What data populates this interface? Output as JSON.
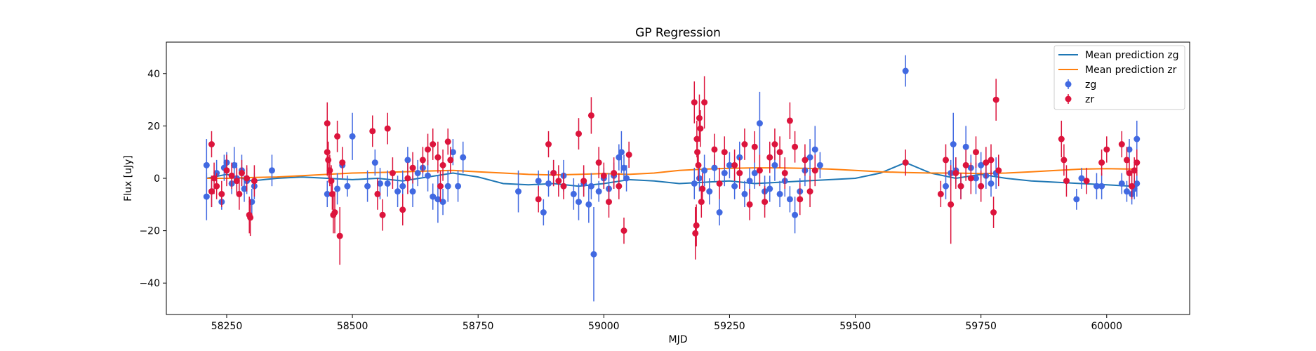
{
  "chart_data": {
    "type": "scatter",
    "title": "GP Regression",
    "xlabel": "MJD",
    "ylabel": "Flux [uJy]",
    "xlim": [
      58130,
      60165
    ],
    "ylim": [
      -52,
      52
    ],
    "xticks": [
      58250,
      58500,
      58750,
      59000,
      59250,
      59500,
      59750,
      60000
    ],
    "yticks": [
      -40,
      -20,
      0,
      20,
      40
    ],
    "grid": false,
    "legend_position": "top-right",
    "colors": {
      "zg_points": "#4169e1",
      "zr_points": "#dc143c",
      "zg_mean": "#1f77b4",
      "zr_mean": "#ff7f0e"
    },
    "lines": [
      {
        "name": "Mean prediction zg",
        "x": [
          58210,
          58250,
          58300,
          58350,
          58400,
          58450,
          58500,
          58550,
          58600,
          58650,
          58700,
          58750,
          58800,
          58850,
          58900,
          58950,
          59000,
          59050,
          59100,
          59150,
          59200,
          59250,
          59300,
          59350,
          59400,
          59450,
          59500,
          59550,
          59600,
          59650,
          59700,
          59750,
          59800,
          59850,
          59900,
          59950,
          60000,
          60050,
          60060
        ],
        "y": [
          0,
          1.5,
          -1,
          0,
          0.5,
          0,
          -0.5,
          0,
          -1,
          0.5,
          2,
          0.5,
          -2,
          -2.5,
          -2,
          -3,
          -2,
          -0.5,
          -1,
          -2,
          -1.5,
          -1,
          -2,
          -1.5,
          -1,
          -0.5,
          0,
          2,
          6,
          2,
          0,
          1.5,
          0,
          -1,
          -1.5,
          -2,
          -2.5,
          -3,
          -3
        ]
      },
      {
        "name": "Mean prediction zr",
        "x": [
          58210,
          58250,
          58300,
          58350,
          58400,
          58450,
          58500,
          58550,
          58600,
          58650,
          58700,
          58750,
          58800,
          58850,
          58900,
          58950,
          59000,
          59050,
          59100,
          59150,
          59200,
          59250,
          59300,
          59350,
          59400,
          59450,
          59500,
          59550,
          59600,
          59650,
          59700,
          59750,
          59800,
          59850,
          59900,
          59950,
          60000,
          60050,
          60060
        ],
        "y": [
          0,
          0,
          0.3,
          0.5,
          1,
          1.5,
          2,
          2.2,
          2.5,
          2.8,
          3,
          2.5,
          2,
          1.5,
          1.3,
          1.5,
          1.8,
          1.5,
          2,
          3,
          3.5,
          3.8,
          4,
          4,
          3.8,
          3.5,
          3,
          2.5,
          2.2,
          2,
          2,
          1.8,
          2,
          2.5,
          3,
          3.5,
          3.7,
          3.5,
          3.5
        ]
      }
    ],
    "series": [
      {
        "name": "zg",
        "points": [
          [
            58210,
            5,
            10
          ],
          [
            58210,
            -7,
            9
          ],
          [
            58220,
            -5,
            6
          ],
          [
            58230,
            2,
            5
          ],
          [
            58240,
            -9,
            3
          ],
          [
            58245,
            4,
            5
          ],
          [
            58250,
            6,
            4
          ],
          [
            58260,
            -2,
            4
          ],
          [
            58265,
            5,
            7
          ],
          [
            58270,
            0,
            6
          ],
          [
            58280,
            3,
            6
          ],
          [
            58285,
            -4,
            5
          ],
          [
            58290,
            -1,
            5
          ],
          [
            58300,
            -9,
            5
          ],
          [
            58305,
            -3,
            5
          ],
          [
            58340,
            3,
            6
          ],
          [
            58450,
            -6,
            5
          ],
          [
            58470,
            -4,
            6
          ],
          [
            58480,
            5,
            4
          ],
          [
            58490,
            -3,
            4
          ],
          [
            58500,
            16,
            9
          ],
          [
            58530,
            -3,
            6
          ],
          [
            58545,
            6,
            5
          ],
          [
            58555,
            -2,
            6
          ],
          [
            58570,
            -2,
            5
          ],
          [
            58590,
            -5,
            6
          ],
          [
            58600,
            -3,
            6
          ],
          [
            58610,
            7,
            5
          ],
          [
            58620,
            -5,
            6
          ],
          [
            58630,
            2,
            5
          ],
          [
            58640,
            4,
            4
          ],
          [
            58650,
            1,
            6
          ],
          [
            58660,
            -7,
            5
          ],
          [
            58670,
            -8,
            9
          ],
          [
            58680,
            -9,
            5
          ],
          [
            58690,
            -3,
            6
          ],
          [
            58700,
            10,
            5
          ],
          [
            58710,
            -3,
            6
          ],
          [
            58720,
            8,
            6
          ],
          [
            58830,
            -5,
            8
          ],
          [
            58870,
            -1,
            4
          ],
          [
            58880,
            -13,
            5
          ],
          [
            58890,
            -2,
            5
          ],
          [
            58900,
            2,
            5
          ],
          [
            58920,
            1,
            6
          ],
          [
            58940,
            -6,
            6
          ],
          [
            58950,
            -9,
            7
          ],
          [
            58960,
            -2,
            5
          ],
          [
            58970,
            -10,
            7
          ],
          [
            58975,
            -3,
            5
          ],
          [
            58980,
            -29,
            18
          ],
          [
            58990,
            -5,
            4
          ],
          [
            59000,
            0,
            4
          ],
          [
            59010,
            -4,
            6
          ],
          [
            59020,
            1,
            5
          ],
          [
            59030,
            8,
            5
          ],
          [
            59035,
            10,
            8
          ],
          [
            59040,
            4,
            5
          ],
          [
            59045,
            0,
            5
          ],
          [
            59180,
            -2,
            6
          ],
          [
            59190,
            0,
            5
          ],
          [
            59200,
            3,
            6
          ],
          [
            59210,
            -5,
            5
          ],
          [
            59220,
            4,
            5
          ],
          [
            59230,
            -13,
            5
          ],
          [
            59240,
            2,
            5
          ],
          [
            59250,
            5,
            5
          ],
          [
            59260,
            -3,
            5
          ],
          [
            59270,
            8,
            6
          ],
          [
            59280,
            -6,
            5
          ],
          [
            59290,
            -1,
            5
          ],
          [
            59300,
            2,
            6
          ],
          [
            59310,
            21,
            12
          ],
          [
            59320,
            -5,
            6
          ],
          [
            59330,
            -4,
            5
          ],
          [
            59340,
            5,
            6
          ],
          [
            59350,
            -6,
            5
          ],
          [
            59360,
            -1,
            6
          ],
          [
            59370,
            -8,
            5
          ],
          [
            59380,
            -14,
            7
          ],
          [
            59390,
            -5,
            5
          ],
          [
            59400,
            3,
            6
          ],
          [
            59410,
            8,
            7
          ],
          [
            59420,
            11,
            9
          ],
          [
            59430,
            5,
            5
          ],
          [
            59600,
            41,
            6
          ],
          [
            59680,
            -3,
            5
          ],
          [
            59690,
            2,
            5
          ],
          [
            59695,
            13,
            12
          ],
          [
            59700,
            3,
            5
          ],
          [
            59710,
            -3,
            5
          ],
          [
            59720,
            12,
            8
          ],
          [
            59730,
            4,
            5
          ],
          [
            59740,
            0,
            6
          ],
          [
            59750,
            5,
            5
          ],
          [
            59760,
            1,
            5
          ],
          [
            59770,
            -2,
            5
          ],
          [
            59780,
            2,
            6
          ],
          [
            59940,
            -8,
            4
          ],
          [
            59950,
            0,
            4
          ],
          [
            59980,
            -3,
            5
          ],
          [
            59990,
            -3,
            5
          ],
          [
            60030,
            -2,
            4
          ],
          [
            60040,
            -5,
            4
          ],
          [
            60045,
            11,
            4
          ],
          [
            60050,
            -6,
            4
          ],
          [
            60055,
            -4,
            4
          ],
          [
            60060,
            15,
            7
          ],
          [
            60060,
            -2,
            5
          ]
        ]
      },
      {
        "name": "zr",
        "points": [
          [
            58220,
            13,
            5
          ],
          [
            58220,
            -5,
            6
          ],
          [
            58225,
            0,
            6
          ],
          [
            58230,
            -3,
            5
          ],
          [
            58240,
            -6,
            5
          ],
          [
            58250,
            3,
            6
          ],
          [
            58260,
            1,
            5
          ],
          [
            58270,
            -1,
            5
          ],
          [
            58275,
            -6,
            6
          ],
          [
            58280,
            2,
            5
          ],
          [
            58290,
            0,
            5
          ],
          [
            58295,
            -14,
            7
          ],
          [
            58297,
            -15,
            7
          ],
          [
            58305,
            -1,
            6
          ],
          [
            58450,
            21,
            8
          ],
          [
            58450,
            10,
            9
          ],
          [
            58452,
            7,
            7
          ],
          [
            58455,
            3,
            6
          ],
          [
            58458,
            -1,
            6
          ],
          [
            58460,
            -6,
            6
          ],
          [
            58462,
            -14,
            7
          ],
          [
            58465,
            -13,
            8
          ],
          [
            58470,
            16,
            6
          ],
          [
            58475,
            -22,
            11
          ],
          [
            58480,
            6,
            6
          ],
          [
            58540,
            18,
            6
          ],
          [
            58550,
            -6,
            6
          ],
          [
            58560,
            -14,
            6
          ],
          [
            58570,
            19,
            6
          ],
          [
            58580,
            2,
            6
          ],
          [
            58600,
            -12,
            6
          ],
          [
            58610,
            0,
            6
          ],
          [
            58620,
            4,
            6
          ],
          [
            58640,
            7,
            5
          ],
          [
            58650,
            11,
            6
          ],
          [
            58660,
            13,
            6
          ],
          [
            58670,
            8,
            6
          ],
          [
            58675,
            -3,
            6
          ],
          [
            58680,
            5,
            6
          ],
          [
            58690,
            14,
            5
          ],
          [
            58695,
            7,
            5
          ],
          [
            58870,
            -8,
            5
          ],
          [
            58890,
            13,
            5
          ],
          [
            58900,
            2,
            5
          ],
          [
            58910,
            -1,
            6
          ],
          [
            58920,
            -3,
            5
          ],
          [
            58950,
            17,
            6
          ],
          [
            58960,
            -1,
            6
          ],
          [
            58975,
            24,
            7
          ],
          [
            58990,
            6,
            6
          ],
          [
            59000,
            1,
            5
          ],
          [
            59010,
            -9,
            6
          ],
          [
            59020,
            2,
            6
          ],
          [
            59030,
            -3,
            5
          ],
          [
            59040,
            -20,
            5
          ],
          [
            59050,
            9,
            5
          ],
          [
            59180,
            29,
            8
          ],
          [
            59182,
            -21,
            10
          ],
          [
            59184,
            -18,
            8
          ],
          [
            59185,
            15,
            7
          ],
          [
            59186,
            10,
            6
          ],
          [
            59188,
            5,
            6
          ],
          [
            59190,
            23,
            9
          ],
          [
            59192,
            19,
            7
          ],
          [
            59194,
            -9,
            6
          ],
          [
            59196,
            -4,
            6
          ],
          [
            59200,
            29,
            10
          ],
          [
            59220,
            11,
            6
          ],
          [
            59230,
            -2,
            6
          ],
          [
            59240,
            10,
            6
          ],
          [
            59260,
            5,
            6
          ],
          [
            59270,
            2,
            6
          ],
          [
            59280,
            13,
            6
          ],
          [
            59290,
            -10,
            6
          ],
          [
            59300,
            12,
            6
          ],
          [
            59310,
            3,
            6
          ],
          [
            59320,
            -9,
            6
          ],
          [
            59330,
            8,
            6
          ],
          [
            59340,
            13,
            6
          ],
          [
            59350,
            10,
            6
          ],
          [
            59360,
            2,
            6
          ],
          [
            59370,
            22,
            7
          ],
          [
            59380,
            12,
            6
          ],
          [
            59390,
            -8,
            6
          ],
          [
            59400,
            7,
            6
          ],
          [
            59410,
            -5,
            6
          ],
          [
            59420,
            3,
            6
          ],
          [
            59600,
            6,
            5
          ],
          [
            59670,
            -6,
            5
          ],
          [
            59680,
            7,
            6
          ],
          [
            59690,
            -10,
            15
          ],
          [
            59700,
            2,
            6
          ],
          [
            59710,
            -3,
            5
          ],
          [
            59720,
            5,
            6
          ],
          [
            59730,
            0,
            6
          ],
          [
            59740,
            10,
            6
          ],
          [
            59750,
            -3,
            6
          ],
          [
            59760,
            6,
            6
          ],
          [
            59770,
            7,
            6
          ],
          [
            59775,
            -13,
            6
          ],
          [
            59780,
            30,
            8
          ],
          [
            59785,
            3,
            6
          ],
          [
            59910,
            15,
            7
          ],
          [
            59915,
            7,
            6
          ],
          [
            59920,
            -1,
            6
          ],
          [
            59960,
            -1,
            5
          ],
          [
            59990,
            6,
            5
          ],
          [
            60000,
            11,
            5
          ],
          [
            60030,
            13,
            5
          ],
          [
            60040,
            7,
            5
          ],
          [
            60045,
            2,
            5
          ],
          [
            60050,
            -3,
            5
          ],
          [
            60055,
            3,
            5
          ],
          [
            60060,
            6,
            5
          ]
        ]
      }
    ]
  }
}
